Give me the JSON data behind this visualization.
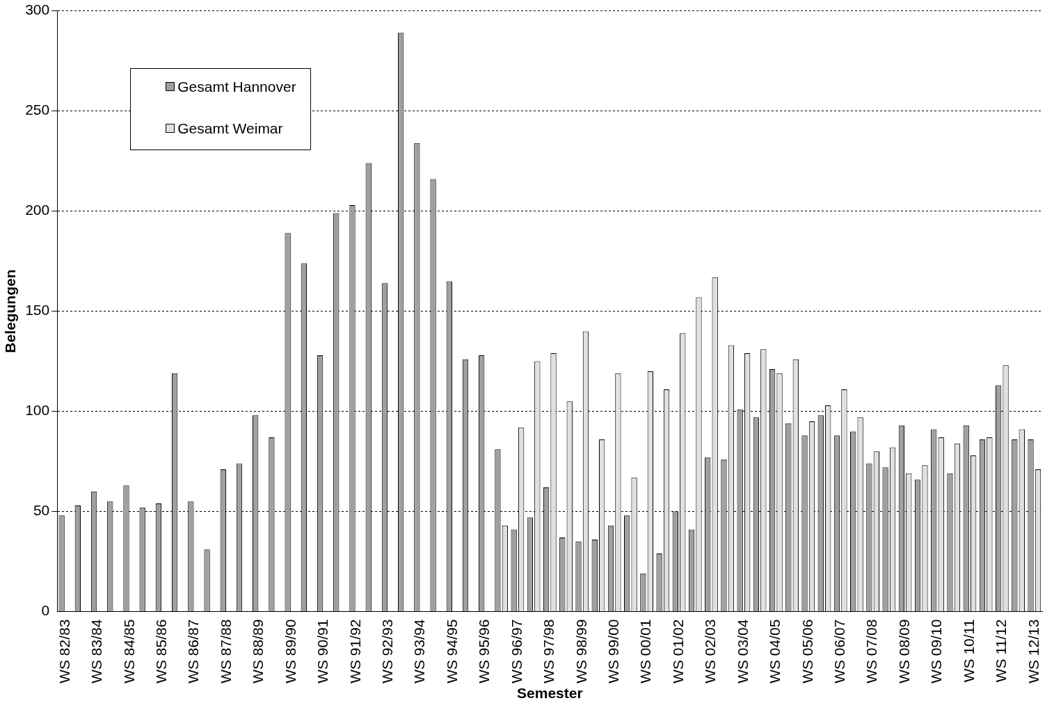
{
  "chart_data": {
    "type": "bar",
    "xlabel": "Semester",
    "ylabel": "Belegungen",
    "categories": [
      "WS 82/83",
      null,
      "WS 83/84",
      null,
      "WS 84/85",
      null,
      "WS 85/86",
      null,
      "WS 86/87",
      null,
      "WS 87/88",
      null,
      "WS 88/89",
      null,
      "WS 89/90",
      null,
      "WS 90/91",
      null,
      "WS 91/92",
      null,
      "WS 92/93",
      null,
      "WS 93/94",
      null,
      "WS 94/95",
      null,
      "WS 95/96",
      null,
      "WS 96/97",
      null,
      "WS 97/98",
      null,
      "WS 98/99",
      null,
      "WS 99/00",
      null,
      "WS 00/01",
      null,
      "WS 01/02",
      null,
      "WS 02/03",
      null,
      "WS 03/04",
      null,
      "WS 04/05",
      null,
      "WS 05/06",
      null,
      "WS 06/07",
      null,
      "WS 07/08",
      null,
      "WS 08/09",
      null,
      "WS 09/10",
      null,
      "WS 10/11",
      null,
      "WS 11/12",
      null,
      "WS 12/13"
    ],
    "series": [
      {
        "name": "Gesamt Hannover",
        "color": "#a0a0a0",
        "values": [
          48,
          53,
          60,
          55,
          63,
          52,
          54,
          119,
          55,
          31,
          71,
          74,
          98,
          87,
          189,
          174,
          128,
          199,
          203,
          224,
          164,
          289,
          234,
          216,
          165,
          126,
          128,
          81,
          41,
          47,
          62,
          37,
          35,
          36,
          43,
          48,
          19,
          29,
          50,
          41,
          77,
          76,
          101,
          97,
          121,
          94,
          88,
          98,
          88,
          90,
          74,
          72,
          93,
          66,
          91,
          69,
          93,
          86,
          113,
          86,
          86
        ]
      },
      {
        "name": "Gesamt Weimar",
        "color": "#e0e0e0",
        "values": [
          null,
          null,
          null,
          null,
          null,
          null,
          null,
          null,
          null,
          null,
          null,
          null,
          null,
          null,
          null,
          null,
          null,
          null,
          null,
          null,
          null,
          null,
          null,
          null,
          null,
          null,
          null,
          43,
          92,
          125,
          129,
          105,
          140,
          86,
          119,
          67,
          120,
          111,
          139,
          157,
          167,
          133,
          129,
          131,
          119,
          126,
          95,
          103,
          111,
          97,
          80,
          82,
          69,
          73,
          87,
          84,
          78,
          87,
          123,
          91,
          71
        ]
      }
    ],
    "ylim": [
      0,
      300
    ],
    "yticks": [
      0,
      50,
      100,
      150,
      200,
      250,
      300
    ],
    "grid": "y",
    "legend": "top left"
  }
}
